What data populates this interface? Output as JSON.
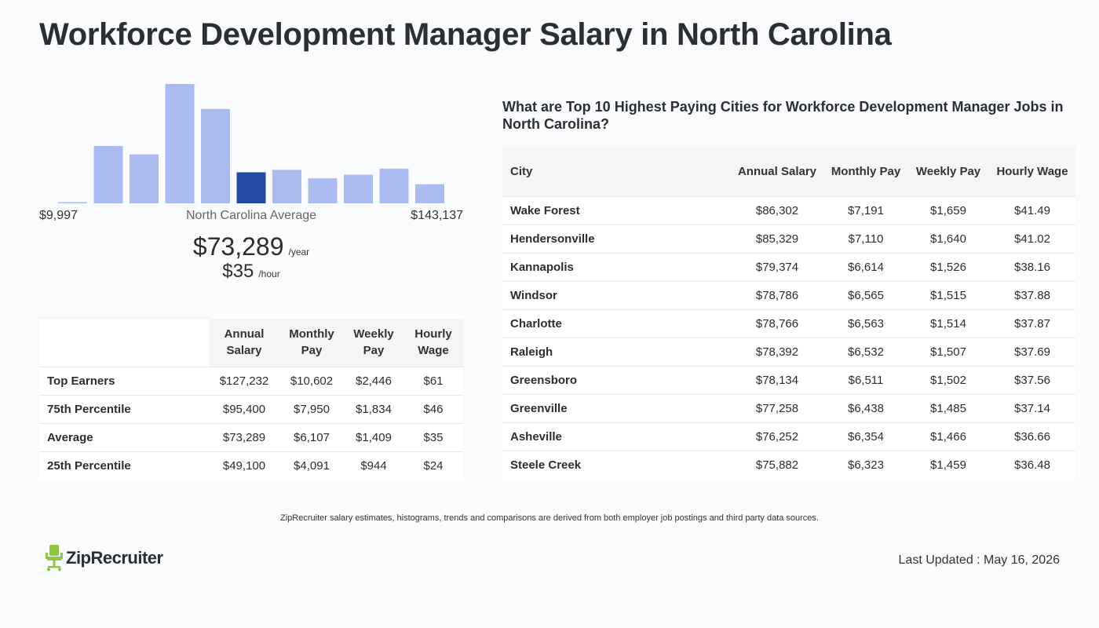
{
  "page": {
    "title": "Workforce Development Manager Salary in North Carolina"
  },
  "histogram": {
    "min_label": "$9,997",
    "max_label": "$143,137",
    "avg_label": "North Carolina Average",
    "highlight_index": 5,
    "bar_color": "#aabbf2",
    "highlight_color": "#2448a5",
    "levels": [
      0.01,
      0.48,
      0.41,
      1.0,
      0.79,
      0.26,
      0.28,
      0.21,
      0.24,
      0.29,
      0.16
    ]
  },
  "summary": {
    "annual": "$73,289",
    "annual_unit": "/year",
    "hourly": "$35",
    "hourly_unit": "/hour"
  },
  "percentile_table": {
    "headers": [
      "Annual Salary",
      "Monthly Pay",
      "Weekly Pay",
      "Hourly Wage"
    ],
    "rows": [
      {
        "label": "Top Earners",
        "values": [
          "$127,232",
          "$10,602",
          "$2,446",
          "$61"
        ]
      },
      {
        "label": "75th Percentile",
        "values": [
          "$95,400",
          "$7,950",
          "$1,834",
          "$46"
        ]
      },
      {
        "label": "Average",
        "values": [
          "$73,289",
          "$6,107",
          "$1,409",
          "$35"
        ]
      },
      {
        "label": "25th Percentile",
        "values": [
          "$49,100",
          "$4,091",
          "$944",
          "$24"
        ]
      }
    ]
  },
  "cities": {
    "heading": "What are Top 10 Highest Paying Cities for Workforce Development Manager Jobs in North Carolina?",
    "headers": [
      "City",
      "Annual Salary",
      "Monthly Pay",
      "Weekly Pay",
      "Hourly Wage"
    ],
    "rows": [
      {
        "city": "Wake Forest",
        "values": [
          "$86,302",
          "$7,191",
          "$1,659",
          "$41.49"
        ]
      },
      {
        "city": "Hendersonville",
        "values": [
          "$85,329",
          "$7,110",
          "$1,640",
          "$41.02"
        ]
      },
      {
        "city": "Kannapolis",
        "values": [
          "$79,374",
          "$6,614",
          "$1,526",
          "$38.16"
        ]
      },
      {
        "city": "Windsor",
        "values": [
          "$78,786",
          "$6,565",
          "$1,515",
          "$37.88"
        ]
      },
      {
        "city": "Charlotte",
        "values": [
          "$78,766",
          "$6,563",
          "$1,514",
          "$37.87"
        ]
      },
      {
        "city": "Raleigh",
        "values": [
          "$78,392",
          "$6,532",
          "$1,507",
          "$37.69"
        ]
      },
      {
        "city": "Greensboro",
        "values": [
          "$78,134",
          "$6,511",
          "$1,502",
          "$37.56"
        ]
      },
      {
        "city": "Greenville",
        "values": [
          "$77,258",
          "$6,438",
          "$1,485",
          "$37.14"
        ]
      },
      {
        "city": "Asheville",
        "values": [
          "$76,252",
          "$6,354",
          "$1,466",
          "$36.66"
        ]
      },
      {
        "city": "Steele Creek",
        "values": [
          "$75,882",
          "$6,323",
          "$1,459",
          "$36.48"
        ]
      }
    ]
  },
  "footer": {
    "disclaimer": "ZipRecruiter salary estimates, histograms, trends and comparisons are derived from both employer job postings and third party data sources.",
    "logo_text": "ZipRecruiter",
    "logo_icon": "chair-icon",
    "logo_color": "#8dc63f",
    "last_updated": "Last Updated : May 16, 2026"
  }
}
